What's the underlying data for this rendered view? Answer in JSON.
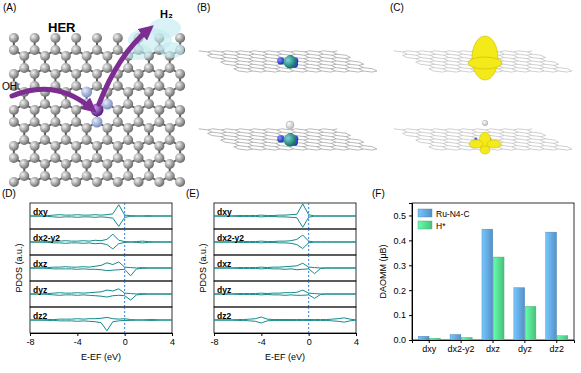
{
  "chart_data": [
    {
      "type": "line",
      "title": "(D)",
      "xlabel": "E-EF (eV)",
      "ylabel": "PDOS (a.u.)",
      "x": [
        -8,
        -7.5,
        -7,
        -6.5,
        -6,
        -5.5,
        -5,
        -4.5,
        -4,
        -3.5,
        -3,
        -2.5,
        -2,
        -1.5,
        -1,
        -0.5,
        0,
        0.5,
        1,
        1.5,
        2,
        2.5,
        3,
        3.5,
        4
      ],
      "xlim": [
        -8,
        4
      ],
      "xticks": [
        -8,
        -4,
        0,
        4
      ],
      "ylim": [
        -3,
        3
      ],
      "tick_labels": "x",
      "vline": 0,
      "color": "#138a8a",
      "series": [
        {
          "name": "dxy",
          "values": [
            0,
            0,
            0,
            0.1,
            0.2,
            0.3,
            0.2,
            0.2,
            0.3,
            0.2,
            0.2,
            0.3,
            0.2,
            0.3,
            0.5,
            2.6,
            0.2,
            0.1,
            0,
            0,
            0.1,
            0,
            0,
            0,
            0
          ],
          "down": [
            0,
            0,
            0,
            -0.1,
            -0.2,
            -0.3,
            -0.2,
            -0.2,
            -0.3,
            -0.2,
            -0.2,
            -0.3,
            -0.2,
            -0.3,
            -0.5,
            -2.4,
            -0.3,
            -0.1,
            0,
            0,
            -0.1,
            0,
            0,
            0,
            0
          ]
        },
        {
          "name": "dx2-y2",
          "values": [
            0,
            0,
            0,
            0.1,
            0.2,
            0.2,
            0.3,
            0.2,
            0.2,
            0.3,
            0.2,
            0.4,
            0.3,
            0.6,
            1.8,
            0.4,
            0.1,
            0,
            0.1,
            0.2,
            0.1,
            0,
            0,
            0,
            0
          ],
          "down": [
            0,
            0,
            0,
            -0.1,
            -0.2,
            -0.2,
            -0.3,
            -0.2,
            -0.2,
            -0.3,
            -0.2,
            -0.4,
            -0.3,
            -0.6,
            -1.6,
            -0.4,
            -0.1,
            0,
            -0.1,
            -0.2,
            -0.1,
            0,
            0,
            0,
            0
          ]
        },
        {
          "name": "dxz",
          "values": [
            0,
            0,
            0,
            0.1,
            0.2,
            0.2,
            0.3,
            0.2,
            0.2,
            0.3,
            0.2,
            0.4,
            0.6,
            1.2,
            0.8,
            1.4,
            0.2,
            0.1,
            0,
            0.1,
            0,
            0,
            0,
            0,
            0
          ],
          "down": [
            0,
            0,
            0,
            -0.1,
            -0.2,
            -0.2,
            -0.2,
            -0.2,
            -0.3,
            -0.2,
            -0.3,
            -0.3,
            -0.4,
            -0.6,
            -0.5,
            -0.4,
            -0.3,
            -1.8,
            -0.2,
            -0.1,
            0,
            0,
            0,
            0,
            0
          ]
        },
        {
          "name": "dyz",
          "values": [
            0,
            0,
            0,
            0.1,
            0.2,
            0.3,
            0.2,
            0.2,
            0.3,
            0.2,
            0.3,
            0.4,
            0.5,
            0.9,
            0.7,
            1.2,
            0.2,
            0.1,
            0,
            0.1,
            0,
            0,
            0,
            0,
            0
          ],
          "down": [
            0,
            0,
            0,
            -0.1,
            -0.2,
            -0.3,
            -0.2,
            -0.2,
            -0.3,
            -0.2,
            -0.3,
            -0.4,
            -0.5,
            -0.7,
            -0.4,
            -0.3,
            -0.4,
            -1.4,
            -0.2,
            -0.1,
            0,
            0,
            0,
            0,
            0
          ]
        },
        {
          "name": "dz2",
          "values": [
            0,
            0,
            0,
            0.1,
            0.1,
            0.2,
            0.2,
            0.2,
            0.3,
            0.2,
            0.3,
            0.3,
            0.4,
            0.6,
            0.3,
            0.2,
            0.3,
            0.1,
            0,
            0,
            0.1,
            0.1,
            0,
            0,
            0
          ],
          "down": [
            0,
            0,
            0,
            -0.1,
            -0.1,
            -0.2,
            -0.2,
            -0.2,
            -0.3,
            -0.2,
            -0.3,
            -0.4,
            -0.6,
            -2.5,
            -0.4,
            -0.2,
            -0.1,
            -0.1,
            0,
            0,
            -0.1,
            -0.1,
            0,
            0,
            0
          ]
        }
      ]
    },
    {
      "type": "line",
      "title": "(E)",
      "xlabel": "E-EF (eV)",
      "ylabel": "PDOS (a.u.)",
      "x": [
        -8,
        -7.5,
        -7,
        -6.5,
        -6,
        -5.5,
        -5,
        -4.5,
        -4,
        -3.5,
        -3,
        -2.5,
        -2,
        -1.5,
        -1,
        -0.5,
        0,
        0.5,
        1,
        1.5,
        2,
        2.5,
        3,
        3.5,
        4
      ],
      "xlim": [
        -8,
        4
      ],
      "xticks": [
        -8,
        -4,
        0,
        4
      ],
      "ylim": [
        -3,
        3
      ],
      "tick_labels": "x",
      "vline": 0,
      "color": "#138a8a",
      "series": [
        {
          "name": "dxy",
          "values": [
            0,
            0,
            0,
            0,
            0.1,
            0.1,
            0.1,
            0.1,
            0.2,
            0.1,
            0.1,
            0.2,
            0.2,
            0.3,
            0.4,
            2.8,
            0.3,
            0,
            0,
            0,
            0,
            0,
            0,
            0,
            0
          ],
          "down": [
            0,
            0,
            0,
            0,
            -0.1,
            -0.1,
            -0.1,
            -0.1,
            -0.2,
            -0.1,
            -0.1,
            -0.2,
            -0.2,
            -0.3,
            -0.4,
            -2.6,
            -0.3,
            0,
            0,
            0,
            0,
            0,
            0,
            0,
            0
          ]
        },
        {
          "name": "dx2-y2",
          "values": [
            0,
            0,
            0,
            0,
            0.1,
            0.1,
            0.1,
            0.1,
            0.2,
            0.1,
            0.1,
            0.2,
            0.2,
            0.3,
            0.6,
            1.6,
            0.2,
            0,
            0,
            0,
            0,
            0,
            0,
            0,
            0
          ],
          "down": [
            0,
            0,
            0,
            0,
            -0.1,
            -0.1,
            -0.1,
            -0.1,
            -0.2,
            -0.1,
            -0.1,
            -0.2,
            -0.2,
            -0.3,
            -0.6,
            -1.5,
            -0.2,
            0,
            0,
            0,
            0,
            0,
            0,
            0,
            0
          ]
        },
        {
          "name": "dxz",
          "values": [
            0,
            0,
            0,
            0,
            0.1,
            0.1,
            0.1,
            0.1,
            0.2,
            0.1,
            0.2,
            0.2,
            0.3,
            0.4,
            0.5,
            1.1,
            0.2,
            0.1,
            0,
            0,
            0,
            0,
            0,
            0,
            0
          ],
          "down": [
            0,
            0,
            0,
            0,
            -0.1,
            -0.1,
            -0.1,
            -0.1,
            -0.2,
            -0.1,
            -0.2,
            -0.2,
            -0.3,
            -0.2,
            -0.4,
            -0.3,
            -0.2,
            -1.3,
            -0.1,
            0,
            0,
            0,
            0,
            0,
            0
          ]
        },
        {
          "name": "dyz",
          "values": [
            0,
            0,
            0,
            0,
            0.1,
            0.1,
            0.1,
            0.1,
            0.2,
            0.1,
            0.2,
            0.2,
            0.3,
            0.3,
            0.4,
            0.9,
            0.2,
            0.1,
            0,
            0,
            0,
            0,
            0,
            0,
            0
          ],
          "down": [
            0,
            0,
            0,
            0,
            -0.1,
            -0.1,
            -0.1,
            -0.1,
            -0.2,
            -0.1,
            -0.2,
            -0.2,
            -0.3,
            -0.2,
            -0.3,
            -0.3,
            -0.2,
            -1.0,
            -0.1,
            0,
            0,
            0,
            0,
            0,
            0
          ]
        },
        {
          "name": "dz2",
          "values": [
            0,
            0,
            0,
            0,
            0.1,
            0.1,
            0.2,
            0.3,
            0.7,
            0.2,
            0.1,
            0.1,
            0.1,
            0.1,
            0.1,
            0.1,
            0.1,
            0.1,
            0.1,
            0.1,
            0.2,
            0.3,
            0.5,
            0.2,
            0
          ],
          "down": [
            0,
            0,
            0,
            0,
            -0.1,
            -0.1,
            -0.2,
            -0.3,
            -0.7,
            -0.2,
            -0.1,
            -0.1,
            -0.1,
            -0.1,
            -0.1,
            -0.1,
            -0.1,
            -0.1,
            -0.1,
            -0.1,
            -0.2,
            -0.3,
            -0.5,
            -0.2,
            0
          ]
        }
      ]
    },
    {
      "type": "bar",
      "title": "(F)",
      "ylabel": "DAOMM (μB)",
      "categories": [
        "dxy",
        "dx2-y2",
        "dxz",
        "dyz",
        "dz2"
      ],
      "series": [
        {
          "name": "Ru-N4-C",
          "color": "#5b9bd5",
          "values": [
            0.015,
            0.022,
            0.445,
            0.21,
            0.433
          ]
        },
        {
          "name": "H*",
          "color": "#4fcf86",
          "values": [
            0.007,
            0.01,
            0.333,
            0.135,
            0.017
          ]
        }
      ],
      "ylim": [
        0,
        0.55
      ],
      "yticks": [
        {
          "value": 0,
          "label": "0.0"
        },
        0.1,
        0.2,
        0.3,
        0.4,
        0.5
      ],
      "legend": "top-left"
    }
  ],
  "diagrams": [
    {
      "label": "(A)",
      "title": "HER",
      "reactant": "OH⁻",
      "product": "H₂"
    },
    {
      "label": "(B)"
    },
    {
      "label": "(C)"
    }
  ]
}
